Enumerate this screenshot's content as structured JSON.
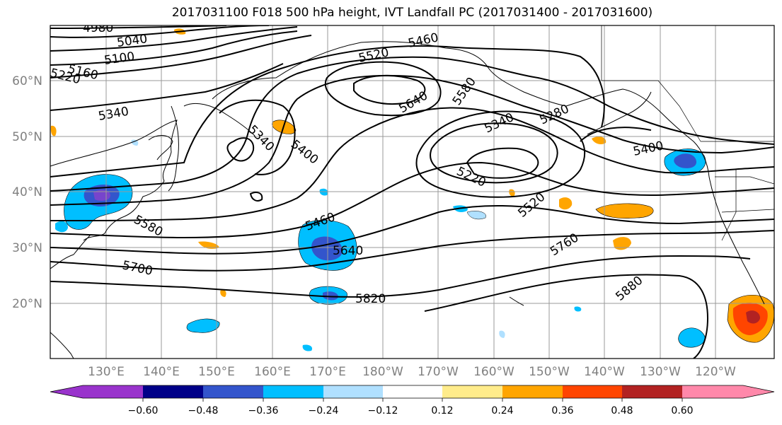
{
  "title": "2017031100 F018 500 hPa height, IVT Landfall PC (2017031400 - 2017031600)",
  "lat_labels": [
    "60°N",
    "50°N",
    "40°N",
    "30°N",
    "20°N"
  ],
  "lon_labels": [
    "130°E",
    "140°E",
    "150°E",
    "160°E",
    "170°E",
    "180°W",
    "170°W",
    "160°W",
    "150°W",
    "140°W",
    "130°W",
    "120°W"
  ],
  "contour_labels": [
    "4980",
    "5040",
    "5100",
    "5160",
    "5220",
    "5340",
    "5520",
    "5460",
    "5640",
    "5580",
    "5340",
    "5280",
    "5340",
    "5400",
    "5400",
    "5220",
    "5520",
    "5460",
    "5640",
    "5580",
    "5700",
    "5820",
    "5760",
    "5880"
  ],
  "colorbar": {
    "colors": [
      "#9933cc",
      "#000088",
      "#3355cc",
      "#00bfff",
      "#b0e0ff",
      "#ffffff",
      "#ffec8b",
      "#ffa500",
      "#ff4500",
      "#b22222",
      "#ff88aa"
    ],
    "ticks": [
      "−0.60",
      "−0.48",
      "−0.36",
      "−0.24",
      "−0.12",
      "0.12",
      "0.24",
      "0.36",
      "0.48",
      "0.60"
    ]
  }
}
